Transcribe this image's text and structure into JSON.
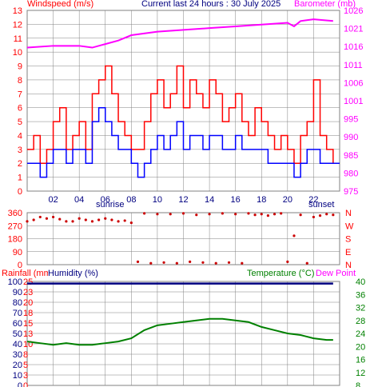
{
  "header": {
    "windspeed": "Windspeed (m/s)",
    "title": "Current last 24 hours : 30 July 2025",
    "barometer": "Barometer (mb)"
  },
  "labels": {
    "sunrise": "sunrise",
    "sunset": "sunset"
  },
  "lower_header": {
    "rainfall": "Rainfall (mm)",
    "humidity": "Humidity (%)",
    "temperature": "Temperature (°C)",
    "dewpoint": "Dew Point"
  },
  "colors": {
    "wind_gust": "#ff0000",
    "wind_avg": "#0000ff",
    "barometer": "#ff00ff",
    "direction": "#cc0000",
    "humidity": "#000080",
    "temperature": "#008000",
    "left_text": "#ff0000",
    "right_text_top": "#ff00ff",
    "right_text_bottom": "#008000",
    "title_text": "#000080",
    "grid": "#808080"
  },
  "chart_data": [
    {
      "type": "line",
      "name": "wind",
      "x_ticks": [
        "02",
        "04",
        "06",
        "08",
        "10",
        "12",
        "14",
        "16",
        "18",
        "20",
        "22"
      ],
      "ylim": [
        0,
        13
      ],
      "y_ticks": [
        "0",
        "1",
        "2",
        "3",
        "4",
        "5",
        "6",
        "7",
        "8",
        "9",
        "10",
        "11",
        "12",
        "13"
      ],
      "y2lim": [
        975,
        1026
      ],
      "y2_ticks": [
        "975",
        "980",
        "985",
        "990",
        "995",
        "1001",
        "1006",
        "1011",
        "1016",
        "1021",
        "1026"
      ],
      "series": [
        {
          "name": "Barometer",
          "axis": "right",
          "x": [
            0,
            2,
            4,
            5,
            6,
            7,
            8,
            10,
            12,
            14,
            16,
            18,
            20,
            20.5,
            21,
            22,
            23.5
          ],
          "values": [
            1015.5,
            1016,
            1016,
            1015.5,
            1016.5,
            1017.5,
            1019,
            1020,
            1020.5,
            1021,
            1021.5,
            1022,
            1022.5,
            1021.5,
            1023,
            1023.5,
            1023
          ]
        },
        {
          "name": "Gust",
          "axis": "left",
          "x": [
            0,
            0.5,
            1,
            1.5,
            2,
            2.5,
            3,
            3.5,
            4,
            4.5,
            5,
            5.5,
            6,
            6.5,
            7,
            7.5,
            8,
            8.5,
            9,
            9.5,
            10,
            10.5,
            11,
            11.5,
            12,
            12.5,
            13,
            13.5,
            14,
            14.5,
            15,
            15.5,
            16,
            16.5,
            17,
            17.5,
            18,
            18.5,
            19,
            19.5,
            20,
            20.5,
            21,
            21.5,
            22,
            22.5,
            23,
            23.5
          ],
          "values": [
            3,
            4,
            2,
            3,
            5,
            6,
            3,
            4,
            5,
            3,
            7,
            8,
            9,
            7,
            5,
            4,
            3,
            3,
            5,
            7,
            8,
            6,
            7,
            9,
            6,
            8,
            7,
            6,
            8,
            7,
            5,
            6,
            7,
            5,
            4,
            6,
            5,
            4,
            3,
            4,
            3,
            2,
            4,
            5,
            8,
            4,
            3,
            2
          ]
        },
        {
          "name": "Average",
          "axis": "left",
          "x": [
            0,
            0.5,
            1,
            1.5,
            2,
            2.5,
            3,
            3.5,
            4,
            4.5,
            5,
            5.5,
            6,
            6.5,
            7,
            7.5,
            8,
            8.5,
            9,
            9.5,
            10,
            10.5,
            11,
            11.5,
            12,
            12.5,
            13,
            13.5,
            14,
            14.5,
            15,
            15.5,
            16,
            16.5,
            17,
            17.5,
            18,
            18.5,
            19,
            19.5,
            20,
            20.5,
            21,
            21.5,
            22,
            22.5,
            23,
            23.5
          ],
          "values": [
            2,
            2,
            1,
            2,
            3,
            3,
            2,
            3,
            3,
            2,
            5,
            6,
            5,
            4,
            3,
            3,
            2,
            1,
            2,
            3,
            4,
            3,
            4,
            5,
            3,
            4,
            4,
            3,
            4,
            4,
            3,
            3,
            4,
            3,
            3,
            3,
            3,
            2,
            2,
            2,
            2,
            1,
            2,
            3,
            3,
            2,
            2,
            2
          ]
        }
      ]
    },
    {
      "type": "scatter",
      "name": "wind direction",
      "y_ticks": [
        "360",
        "270",
        "180",
        "90",
        "0"
      ],
      "ylim": [
        0,
        360
      ],
      "y2_ticks": [
        "N",
        "W",
        "S",
        "E",
        "N"
      ],
      "x": [
        0,
        0.5,
        1,
        1.5,
        2,
        2.5,
        3,
        3.5,
        4,
        4.5,
        5,
        5.5,
        6,
        6.5,
        7,
        7.5,
        8,
        8.5,
        9,
        9.5,
        10,
        10.5,
        11,
        11.5,
        12,
        12.5,
        13,
        13.5,
        14,
        14.5,
        15,
        15.5,
        16,
        16.5,
        17,
        17.5,
        18,
        18.5,
        19,
        19.5,
        20,
        20.5,
        21,
        21.5,
        22,
        22.5,
        23,
        23.5
      ],
      "values": [
        300,
        310,
        330,
        320,
        330,
        315,
        300,
        300,
        320,
        310,
        300,
        310,
        320,
        310,
        300,
        305,
        290,
        20,
        355,
        10,
        350,
        15,
        350,
        10,
        355,
        20,
        345,
        15,
        350,
        10,
        355,
        15,
        350,
        10,
        355,
        345,
        350,
        340,
        350,
        355,
        20,
        200,
        345,
        10,
        330,
        340,
        350,
        345
      ]
    },
    {
      "type": "line",
      "name": "humidity temperature",
      "left_ticks_rain": [
        "25",
        "23",
        "20",
        "18",
        "15",
        "13",
        "10",
        "8",
        "5",
        "3",
        "0"
      ],
      "left_ticks_humidity": [
        "100",
        "90",
        "80",
        "70",
        "60",
        "50",
        "40",
        "30",
        "20",
        "10",
        "0"
      ],
      "y2lim": [
        8,
        40
      ],
      "y2_ticks": [
        "40",
        "36",
        "32",
        "28",
        "24",
        "20",
        "16",
        "12",
        "8"
      ],
      "series": [
        {
          "name": "Humidity",
          "axis": "left",
          "ylim": [
            0,
            100
          ],
          "x": [
            0,
            23.5
          ],
          "values": [
            98,
            98
          ]
        },
        {
          "name": "Temperature",
          "axis": "right",
          "x": [
            0,
            1,
            2,
            3,
            4,
            5,
            6,
            7,
            8,
            9,
            10,
            11,
            12,
            13,
            14,
            15,
            16,
            17,
            18,
            19,
            20,
            21,
            22,
            23,
            23.5
          ],
          "values": [
            21.5,
            21,
            20.5,
            21,
            20.5,
            20.5,
            21,
            21.5,
            22.5,
            25,
            26.5,
            27,
            27.5,
            28,
            28.5,
            28.5,
            28,
            27.5,
            26,
            25,
            24,
            23.5,
            22.5,
            22,
            22
          ]
        }
      ]
    }
  ]
}
